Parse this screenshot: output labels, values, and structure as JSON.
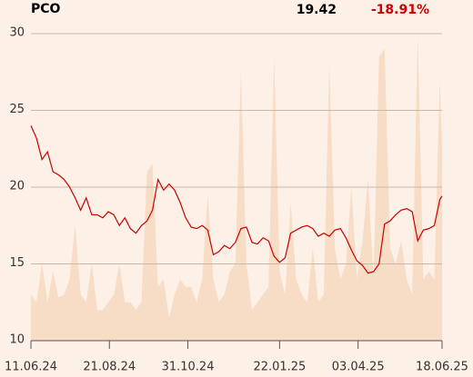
{
  "chart_data": {
    "type": "line",
    "title": "PCO",
    "last_value": 19.42,
    "change": {
      "value": -18.91,
      "label": "-18.91%"
    },
    "x": [
      "2024-06-11",
      "2024-06-16",
      "2024-06-21",
      "2024-06-26",
      "2024-07-01",
      "2024-07-06",
      "2024-07-11",
      "2024-07-16",
      "2024-07-21",
      "2024-07-26",
      "2024-07-31",
      "2024-08-05",
      "2024-08-10",
      "2024-08-15",
      "2024-08-20",
      "2024-08-25",
      "2024-08-30",
      "2024-09-04",
      "2024-09-09",
      "2024-09-14",
      "2024-09-19",
      "2024-09-24",
      "2024-09-29",
      "2024-10-04",
      "2024-10-09",
      "2024-10-14",
      "2024-10-19",
      "2024-10-24",
      "2024-10-29",
      "2024-11-03",
      "2024-11-08",
      "2024-11-13",
      "2024-11-18",
      "2024-11-23",
      "2024-11-28",
      "2024-12-03",
      "2024-12-08",
      "2024-12-13",
      "2024-12-18",
      "2024-12-23",
      "2024-12-28",
      "2025-01-02",
      "2025-01-07",
      "2025-01-12",
      "2025-01-17",
      "2025-01-22",
      "2025-01-27",
      "2025-02-01",
      "2025-02-06",
      "2025-02-11",
      "2025-02-16",
      "2025-02-21",
      "2025-02-26",
      "2025-03-03",
      "2025-03-08",
      "2025-03-13",
      "2025-03-18",
      "2025-03-23",
      "2025-03-28",
      "2025-04-02",
      "2025-04-07",
      "2025-04-12",
      "2025-04-17",
      "2025-04-22",
      "2025-04-27",
      "2025-05-02",
      "2025-05-07",
      "2025-05-12",
      "2025-05-17",
      "2025-05-22",
      "2025-05-27",
      "2025-06-01",
      "2025-06-06",
      "2025-06-11",
      "2025-06-16",
      "2025-06-18"
    ],
    "series": [
      {
        "kind": "area",
        "color": "#f7dcc6",
        "values": [
          13,
          12.5,
          15,
          12.5,
          14.5,
          12.8,
          13,
          14,
          17.5,
          13,
          12.5,
          15,
          12,
          12,
          12.5,
          13,
          15,
          12.5,
          12.5,
          12,
          12.5,
          21,
          21.5,
          13.5,
          14,
          11.5,
          13,
          14,
          13.5,
          13.5,
          12.5,
          14,
          19.5,
          14,
          12.5,
          13,
          14.5,
          15,
          27.5,
          15,
          12,
          12.5,
          13,
          13.5,
          28.5,
          14.5,
          13,
          19,
          14,
          13,
          12.5,
          16,
          12.5,
          13,
          28,
          16,
          14,
          15,
          20,
          14,
          16.5,
          20.5,
          14,
          28.5,
          29,
          16,
          15,
          16.5,
          14,
          13,
          30,
          14,
          14.5,
          14,
          27,
          22.5
        ]
      },
      {
        "kind": "line",
        "color": "#cc0000",
        "values": [
          24.0,
          23.2,
          21.8,
          22.3,
          21.0,
          20.8,
          20.5,
          20.0,
          19.3,
          18.5,
          19.3,
          18.2,
          18.2,
          18.0,
          18.4,
          18.2,
          17.5,
          18.0,
          17.3,
          17.0,
          17.5,
          17.8,
          18.5,
          20.5,
          19.8,
          20.2,
          19.8,
          19.0,
          18.0,
          17.4,
          17.3,
          17.5,
          17.2,
          15.6,
          15.8,
          16.2,
          16.0,
          16.4,
          17.3,
          17.4,
          16.4,
          16.3,
          16.7,
          16.5,
          15.5,
          15.1,
          15.4,
          17.0,
          17.2,
          17.4,
          17.5,
          17.3,
          16.8,
          17.0,
          16.8,
          17.2,
          17.3,
          16.7,
          15.9,
          15.2,
          14.9,
          14.4,
          14.5,
          15.0,
          17.6,
          17.8,
          18.2,
          18.5,
          18.6,
          18.4,
          16.5,
          17.2,
          17.3,
          17.5,
          19.2,
          19.42
        ]
      }
    ],
    "xlim": [
      "2024-06-11",
      "2025-06-18"
    ],
    "xticks": [
      {
        "value": "2024-06-11",
        "label": "11.06.24"
      },
      {
        "value": "2024-08-21",
        "label": "21.08.24"
      },
      {
        "value": "2024-10-31",
        "label": "31.10.24"
      },
      {
        "value": "2025-01-22",
        "label": "22.01.25"
      },
      {
        "value": "2025-04-03",
        "label": "03.04.25"
      },
      {
        "value": "2025-06-18",
        "label": "18.06.25"
      }
    ],
    "ylim": [
      10,
      30
    ],
    "yticks": [
      10,
      15,
      20,
      25,
      30
    ],
    "grid": true
  }
}
